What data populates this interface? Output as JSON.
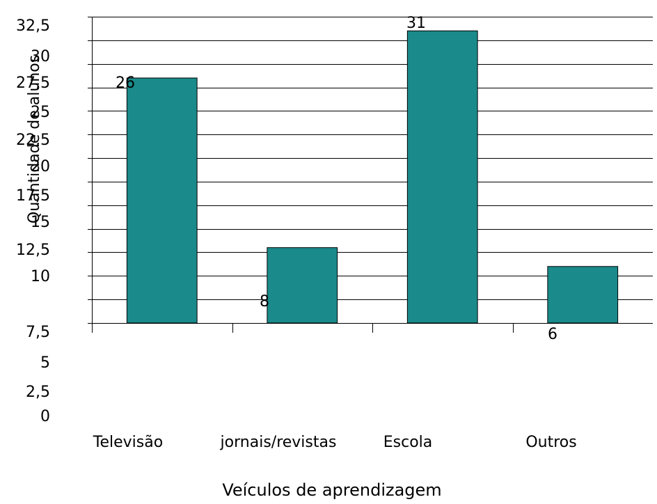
{
  "chart_data": {
    "type": "bar",
    "categories": [
      "Televisão",
      "jornais/revistas",
      "Escola",
      "Outros"
    ],
    "values": [
      26,
      8,
      31,
      6
    ],
    "data_labels": [
      "26",
      "8",
      "31",
      "6"
    ],
    "xlabel": "Veículos de aprendizagem",
    "ylabel": "Quantidade de alunos",
    "ylim": [
      0,
      32.5
    ],
    "yticks": [
      "0",
      "2,5",
      "5",
      "7,5",
      "10",
      "12,5",
      "15",
      "17,5",
      "20",
      "22,5",
      "25",
      "27,5",
      "30",
      "32,5"
    ],
    "grid_ticks": [
      0,
      2.5,
      5,
      7.5,
      10,
      12.5,
      15,
      17.5,
      20,
      22.5,
      25,
      27.5,
      30,
      32.5
    ],
    "grid": true,
    "legend": "none",
    "colors": {
      "bar": "#1a8a8a",
      "outline": "#000000",
      "grid": "#000000"
    }
  }
}
